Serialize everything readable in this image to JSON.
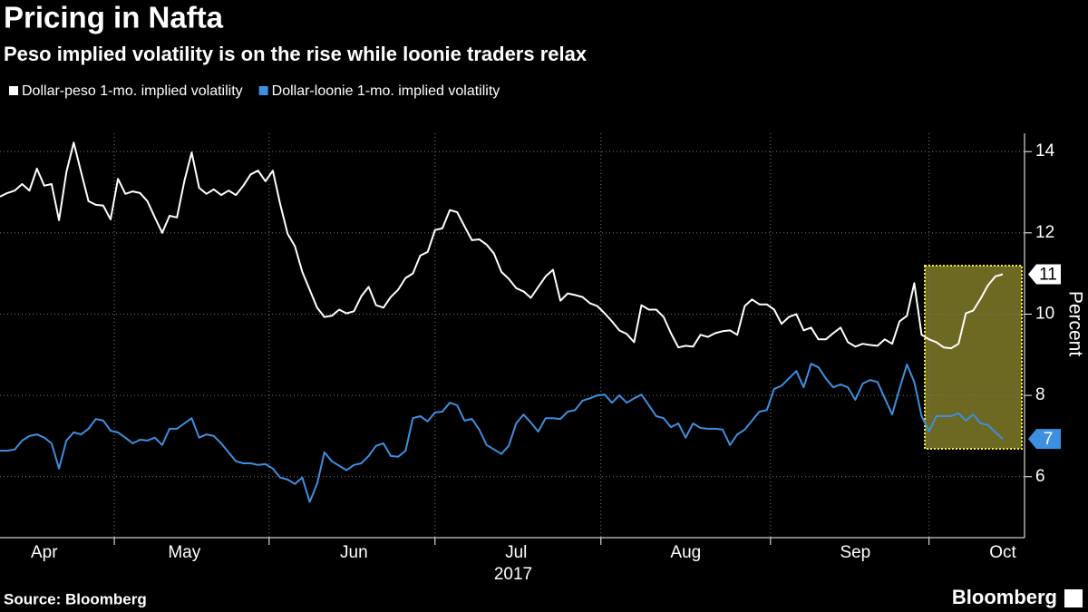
{
  "chart_data": {
    "type": "line",
    "title": "Pricing in Nafta",
    "subtitle": "Peso implied volatility is on the rise while loonie traders relax",
    "ylabel": "Percent",
    "xlabel": "2017",
    "source": "Source: Bloomberg",
    "brand": "Bloomberg",
    "ylim": [
      4.5,
      14.45
    ],
    "yticks": [
      6,
      8,
      10,
      12,
      14
    ],
    "grid": true,
    "categories": [
      null,
      null,
      null,
      null,
      null,
      null,
      "Apr",
      null,
      null,
      null,
      null,
      null,
      null,
      null,
      null,
      null,
      null,
      null,
      null,
      null,
      null,
      null,
      null,
      null,
      null,
      "May",
      null,
      null,
      null,
      null,
      null,
      null,
      null,
      null,
      null,
      null,
      null,
      null,
      null,
      null,
      null,
      null,
      null,
      null,
      null,
      null,
      null,
      null,
      "Jun",
      null,
      null,
      null,
      null,
      null,
      null,
      null,
      null,
      null,
      null,
      null,
      null,
      null,
      null,
      null,
      null,
      null,
      null,
      null,
      null,
      null,
      "Jul",
      null,
      null,
      null,
      null,
      null,
      null,
      null,
      null,
      null,
      null,
      null,
      null,
      null,
      null,
      null,
      null,
      null,
      null,
      null,
      null,
      null,
      null,
      "Aug",
      null,
      null,
      null,
      null,
      null,
      null,
      null,
      null,
      null,
      null,
      null,
      null,
      null,
      null,
      null,
      null,
      null,
      null,
      null,
      null,
      null,
      null,
      "Sep",
      null,
      null,
      null,
      null,
      null,
      null,
      null,
      null,
      null,
      null,
      null,
      null,
      null,
      null,
      null,
      null,
      null,
      null,
      null,
      "Oct"
    ],
    "series": [
      {
        "name": "Dollar-peso 1-mo. implied volatility",
        "color": "#ffffff",
        "end_label": "11",
        "values": [
          12.89,
          12.98,
          13.04,
          13.2,
          13.04,
          13.58,
          13.16,
          13.2,
          12.31,
          13.49,
          14.22,
          13.49,
          12.78,
          12.69,
          12.67,
          12.33,
          13.33,
          12.96,
          13.02,
          12.98,
          12.78,
          12.38,
          12.0,
          12.42,
          12.38,
          13.27,
          13.98,
          13.11,
          12.96,
          13.07,
          12.93,
          13.04,
          12.93,
          13.16,
          13.44,
          13.53,
          13.27,
          13.53,
          12.71,
          11.98,
          11.67,
          11.04,
          10.6,
          10.16,
          9.93,
          9.96,
          10.11,
          10.02,
          10.07,
          10.44,
          10.67,
          10.22,
          10.16,
          10.42,
          10.6,
          10.89,
          11.0,
          11.44,
          11.53,
          12.07,
          12.11,
          12.56,
          12.51,
          12.16,
          11.82,
          11.84,
          11.71,
          11.49,
          11.04,
          10.87,
          10.64,
          10.56,
          10.4,
          10.67,
          10.93,
          11.09,
          10.33,
          10.51,
          10.47,
          10.42,
          10.27,
          10.2,
          10.02,
          9.82,
          9.6,
          9.51,
          9.31,
          10.22,
          10.11,
          10.11,
          9.93,
          9.53,
          9.18,
          9.22,
          9.2,
          9.49,
          9.44,
          9.53,
          9.58,
          9.6,
          9.49,
          10.2,
          10.36,
          10.24,
          10.24,
          10.11,
          9.76,
          9.93,
          10.0,
          9.6,
          9.67,
          9.38,
          9.38,
          9.53,
          9.67,
          9.31,
          9.2,
          9.27,
          9.24,
          9.22,
          9.38,
          9.27,
          9.82,
          9.96,
          10.76,
          9.49,
          9.38,
          9.31,
          9.18,
          9.16,
          9.27,
          10.02,
          10.09,
          10.38,
          10.71,
          10.93,
          10.98
        ]
      },
      {
        "name": "Dollar-loonie 1-mo. implied volatility",
        "color": "#3d8fe0",
        "end_label": "7",
        "values": [
          6.64,
          6.64,
          6.67,
          6.89,
          7.0,
          7.04,
          6.96,
          6.82,
          6.2,
          6.89,
          7.09,
          7.04,
          7.18,
          7.42,
          7.38,
          7.13,
          7.09,
          6.96,
          6.82,
          6.91,
          6.89,
          6.96,
          6.78,
          7.18,
          7.18,
          7.31,
          7.44,
          6.96,
          7.04,
          7.0,
          6.82,
          6.6,
          6.38,
          6.33,
          6.33,
          6.29,
          6.31,
          6.2,
          5.98,
          5.93,
          5.82,
          5.98,
          5.38,
          5.82,
          6.6,
          6.38,
          6.27,
          6.16,
          6.29,
          6.33,
          6.51,
          6.76,
          6.82,
          6.51,
          6.49,
          6.64,
          7.44,
          7.49,
          7.36,
          7.58,
          7.6,
          7.82,
          7.76,
          7.38,
          7.42,
          7.16,
          6.78,
          6.67,
          6.56,
          6.76,
          7.31,
          7.53,
          7.33,
          7.11,
          7.44,
          7.44,
          7.42,
          7.6,
          7.64,
          7.87,
          7.93,
          8.0,
          8.02,
          7.82,
          8.0,
          7.82,
          7.93,
          8.02,
          7.76,
          7.49,
          7.44,
          7.22,
          7.31,
          6.96,
          7.31,
          7.2,
          7.18,
          7.18,
          7.16,
          6.78,
          7.04,
          7.16,
          7.38,
          7.6,
          7.64,
          8.16,
          8.24,
          8.42,
          8.6,
          8.2,
          8.78,
          8.69,
          8.42,
          8.2,
          8.27,
          8.2,
          7.89,
          8.29,
          8.38,
          8.33,
          7.93,
          7.53,
          8.16,
          8.76,
          8.33,
          7.49,
          7.11,
          7.49,
          7.49,
          7.49,
          7.56,
          7.38,
          7.53,
          7.31,
          7.27,
          7.09,
          6.93
        ]
      }
    ]
  }
}
